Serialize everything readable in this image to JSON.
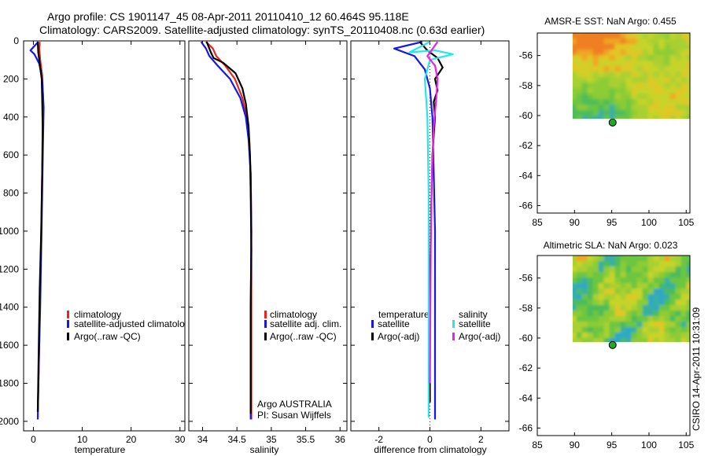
{
  "title": {
    "line1": "Argo profile: CS 1901147_45 08-Apr-2011 20110410_12 60.464S 95.118E",
    "line2": "Climatology: CARS2009. Satellite-adjusted climatology: synTS_20110408.nc (0.63d earlier)"
  },
  "credit": "CSIRO 14-Apr-2011 10:31:09",
  "colors": {
    "red": "#e8251c",
    "blue": "#1616e8",
    "black": "#000000",
    "cyan": "#22e8e8",
    "magenta": "#e822e8"
  },
  "chart_data": [
    {
      "type": "line",
      "name": "temperature-panel",
      "xlabel": "temperature",
      "xlim": [
        -2,
        31
      ],
      "ylim": [
        2050,
        0
      ],
      "xticks": [
        0,
        10,
        20,
        30
      ],
      "yticks": [
        0,
        200,
        400,
        600,
        800,
        1000,
        1200,
        1400,
        1600,
        1800,
        2000
      ],
      "legend": [
        "climatology",
        "satellite-adjusted climatolo",
        "Argo(..raw -QC)"
      ],
      "series": [
        {
          "name": "climatology",
          "color": "red",
          "points": [
            [
              1.3,
              5
            ],
            [
              1.2,
              40
            ],
            [
              1.4,
              100
            ],
            [
              1.8,
              180
            ],
            [
              2.0,
              300
            ],
            [
              2.0,
              450
            ],
            [
              1.8,
              700
            ],
            [
              1.6,
              1000
            ],
            [
              1.4,
              1300
            ],
            [
              1.2,
              1600
            ],
            [
              1.0,
              1850
            ],
            [
              0.9,
              1950
            ]
          ]
        },
        {
          "name": "satellite-adjusted climatology",
          "color": "blue",
          "points": [
            [
              1.0,
              5
            ],
            [
              -0.6,
              50
            ],
            [
              0.2,
              70
            ],
            [
              1.2,
              120
            ],
            [
              1.8,
              200
            ],
            [
              2.1,
              350
            ],
            [
              2.0,
              500
            ],
            [
              1.8,
              800
            ],
            [
              1.6,
              1100
            ],
            [
              1.4,
              1400
            ],
            [
              1.1,
              1700
            ],
            [
              0.9,
              1990
            ]
          ]
        },
        {
          "name": "Argo(..raw -QC)",
          "color": "black",
          "points": [
            [
              0.9,
              5
            ],
            [
              1.0,
              60
            ],
            [
              1.3,
              120
            ],
            [
              1.7,
              200
            ],
            [
              1.8,
              300
            ],
            [
              1.9,
              450
            ],
            [
              1.8,
              700
            ],
            [
              1.6,
              1000
            ],
            [
              1.3,
              1300
            ],
            [
              1.1,
              1600
            ],
            [
              0.9,
              1950
            ]
          ]
        }
      ]
    },
    {
      "type": "line",
      "name": "salinity-panel",
      "xlabel": "salinity",
      "xlim": [
        33.8,
        36.1
      ],
      "ylim": [
        2050,
        0
      ],
      "xticks": [
        34,
        34.5,
        35,
        35.5,
        36
      ],
      "xticklabels": [
        "34",
        "34.5",
        "35",
        "35.5",
        "36"
      ],
      "legend": [
        "climatology",
        "satellite adj. clim.",
        "Argo(..raw -QC)"
      ],
      "note": [
        "Argo AUSTRALIA",
        "PI: Susan Wijffels"
      ],
      "series": [
        {
          "name": "climatology",
          "color": "red",
          "points": [
            [
              34.05,
              5
            ],
            [
              34.15,
              40
            ],
            [
              34.2,
              80
            ],
            [
              34.33,
              130
            ],
            [
              34.47,
              200
            ],
            [
              34.58,
              300
            ],
            [
              34.64,
              400
            ],
            [
              34.68,
              520
            ],
            [
              34.7,
              700
            ],
            [
              34.71,
              1000
            ],
            [
              34.71,
              1400
            ],
            [
              34.71,
              1800
            ],
            [
              34.71,
              1990
            ]
          ]
        },
        {
          "name": "satellite adj. clim.",
          "color": "blue",
          "points": [
            [
              33.98,
              5
            ],
            [
              34.05,
              40
            ],
            [
              34.1,
              80
            ],
            [
              34.22,
              130
            ],
            [
              34.4,
              200
            ],
            [
              34.55,
              300
            ],
            [
              34.63,
              400
            ],
            [
              34.67,
              520
            ],
            [
              34.7,
              700
            ],
            [
              34.71,
              1000
            ],
            [
              34.7,
              1400
            ],
            [
              34.7,
              1800
            ],
            [
              34.7,
              1990
            ]
          ]
        },
        {
          "name": "Argo(..raw -QC)",
          "color": "black",
          "points": [
            [
              34.06,
              5
            ],
            [
              34.12,
              60
            ],
            [
              34.16,
              90
            ],
            [
              34.3,
              115
            ],
            [
              34.48,
              170
            ],
            [
              34.58,
              250
            ],
            [
              34.63,
              330
            ],
            [
              34.67,
              450
            ],
            [
              34.69,
              600
            ],
            [
              34.7,
              800
            ],
            [
              34.71,
              1100
            ],
            [
              34.7,
              1400
            ],
            [
              34.7,
              1700
            ],
            [
              34.7,
              1960
            ]
          ]
        }
      ]
    },
    {
      "type": "line",
      "name": "difference-panel",
      "xlabel": "difference from climatology",
      "xlim": [
        -3.1,
        3.1
      ],
      "ylim": [
        2050,
        0
      ],
      "xticks": [
        -2,
        0,
        2
      ],
      "legend_left_title": "temperature",
      "legend_right_title": "salinity",
      "legend_left": [
        "satellite",
        "Argo(-adj)"
      ],
      "legend_right": [
        "satellite",
        "Argo(-adj)"
      ],
      "series": [
        {
          "name": "temperature satellite",
          "color": "blue",
          "points": [
            [
              -0.3,
              5
            ],
            [
              -1.4,
              40
            ],
            [
              -0.6,
              80
            ],
            [
              -0.2,
              150
            ],
            [
              0.0,
              250
            ],
            [
              0.1,
              400
            ],
            [
              0.15,
              700
            ],
            [
              0.2,
              1000
            ],
            [
              0.2,
              1400
            ],
            [
              0.2,
              1800
            ],
            [
              0.2,
              1990
            ]
          ]
        },
        {
          "name": "temperature Argo(-adj)",
          "color": "black",
          "points": [
            [
              -0.4,
              5
            ],
            [
              -0.1,
              50
            ],
            [
              0.3,
              90
            ],
            [
              0.5,
              140
            ],
            [
              0.2,
              200
            ],
            [
              0.3,
              260
            ],
            [
              0.15,
              320
            ],
            [
              0.2,
              400
            ],
            [
              0.1,
              600
            ],
            [
              0.05,
              900
            ],
            [
              0.0,
              1300
            ],
            [
              0.0,
              1600
            ],
            [
              0.0,
              1900
            ]
          ]
        },
        {
          "name": "salinity satellite",
          "color": "cyan",
          "points": [
            [
              0.0,
              5
            ],
            [
              -0.8,
              60
            ],
            [
              0.2,
              50
            ],
            [
              0.9,
              70
            ],
            [
              0.0,
              100
            ],
            [
              -0.2,
              200
            ],
            [
              -0.1,
              400
            ],
            [
              -0.05,
              800
            ],
            [
              -0.05,
              1200
            ],
            [
              -0.05,
              1600
            ],
            [
              -0.05,
              1980
            ]
          ]
        },
        {
          "name": "salinity Argo(-adj)",
          "color": "magenta",
          "points": [
            [
              0.3,
              5
            ],
            [
              -0.1,
              80
            ],
            [
              0.2,
              130
            ],
            [
              0.3,
              200
            ],
            [
              0.25,
              300
            ],
            [
              0.15,
              450
            ],
            [
              0.08,
              700
            ],
            [
              0.04,
              1000
            ],
            [
              0.02,
              1400
            ],
            [
              0.0,
              1800
            ]
          ]
        }
      ]
    },
    {
      "type": "heatmap",
      "name": "sst-map",
      "title": "AMSR-E SST: NaN Argo: 0.455",
      "xlim": [
        85,
        105.5
      ],
      "ylim": [
        -66.5,
        -54.5
      ],
      "xticks": [
        85,
        90,
        95,
        100,
        105
      ],
      "yticks": [
        -56,
        -58,
        -60,
        -62,
        -64,
        -66
      ],
      "data_extent": [
        89.5,
        105.5,
        -60.2,
        -54.5
      ],
      "argo_position": [
        95.118,
        -60.464
      ]
    },
    {
      "type": "heatmap",
      "name": "sla-map",
      "title": "Altimetric SLA: NaN Argo: 0.023",
      "xlim": [
        85,
        105.5
      ],
      "ylim": [
        -66.5,
        -54.5
      ],
      "xticks": [
        85,
        90,
        95,
        100,
        105
      ],
      "yticks": [
        -56,
        -58,
        -60,
        -62,
        -64,
        -66
      ],
      "data_extent": [
        89.5,
        105.5,
        -60.2,
        -54.5
      ],
      "argo_position": [
        95.118,
        -60.464
      ]
    }
  ]
}
